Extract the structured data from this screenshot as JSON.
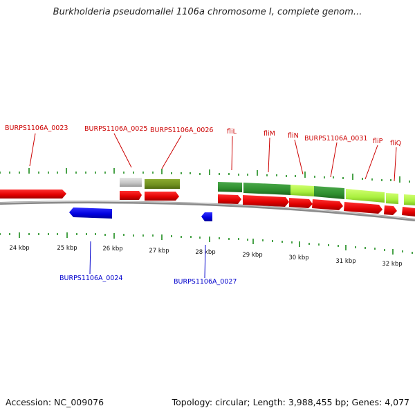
{
  "title": "Burkholderia pseudomallei 1106a chromosome I, complete genom...",
  "footer": {
    "accession": "Accession: NC_009076",
    "summary": "Topology: circular; Length: 3,988,455 bp; Genes: 4,077"
  },
  "colors": {
    "forward_gene": "#ee0000",
    "reverse_gene": "#0000dd",
    "dark_green": "#2f8f2f",
    "light_green": "#aaf040",
    "olive": "#6f8f1f",
    "gray": "#b8b8b8",
    "backbone": "#888888",
    "ticks": "#1a8a1a",
    "forward_label": "#cc0000",
    "reverse_label": "#0000cc"
  },
  "scale_labels": [
    "24 kbp",
    "25 kbp",
    "26 kbp",
    "27 kbp",
    "28 kbp",
    "29 kbp",
    "30 kbp",
    "31 kbp",
    "32 kbp"
  ],
  "forward_labels": [
    "BURPS1106A_0023",
    "BURPS1106A_0025",
    "BURPS1106A_0026",
    "fliL",
    "fliM",
    "fliN",
    "BURPS1106A_0031",
    "fliP",
    "fliQ"
  ],
  "reverse_labels": [
    "BURPS1106A_0024",
    "BURPS1106A_0027"
  ]
}
